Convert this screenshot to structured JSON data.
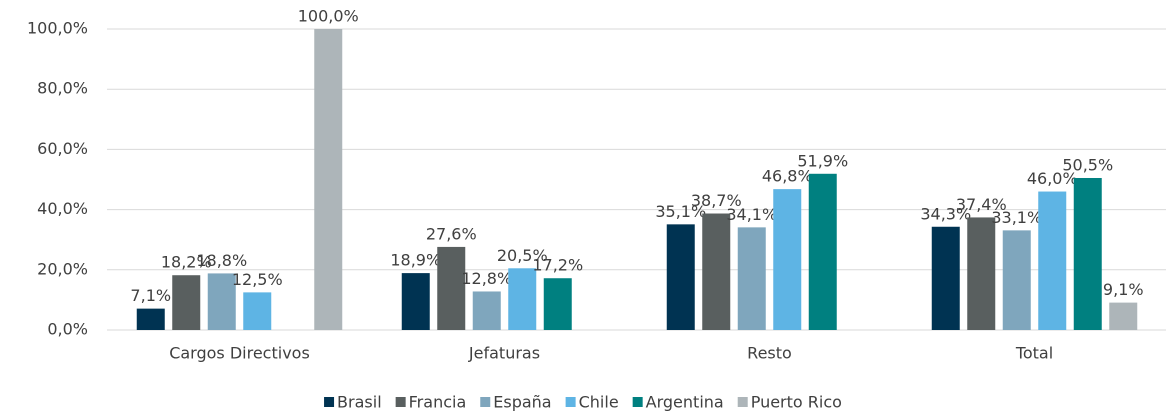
{
  "chart_data": {
    "type": "bar",
    "categories": [
      "Cargos Directivos",
      "Jefaturas",
      "Resto",
      "Total"
    ],
    "series": [
      {
        "name": "Brasil",
        "color": "#003352",
        "values": [
          7.1,
          18.9,
          35.1,
          34.3
        ],
        "value_labels": [
          "7,1%",
          "18,9%",
          "35,1%",
          "34,3%"
        ]
      },
      {
        "name": "Francia",
        "color": "#595f5f",
        "values": [
          18.2,
          27.6,
          38.7,
          37.4
        ],
        "value_labels": [
          "18,2%",
          "27,6%",
          "38,7%",
          "37,4%"
        ]
      },
      {
        "name": "España",
        "color": "#7fa6bd",
        "values": [
          18.8,
          12.8,
          34.1,
          33.1
        ],
        "value_labels": [
          "18,8%",
          "12,8%",
          "34,1%",
          "33,1%"
        ]
      },
      {
        "name": "Chile",
        "color": "#5eb4e4",
        "values": [
          12.5,
          20.5,
          46.8,
          46.0
        ],
        "value_labels": [
          "12,5%",
          "20,5%",
          "46,8%",
          "46,0%"
        ]
      },
      {
        "name": "Argentina",
        "color": "#008080",
        "values": [
          null,
          17.2,
          51.9,
          50.5
        ],
        "value_labels": [
          null,
          "17,2%",
          "51,9%",
          "50,5%"
        ]
      },
      {
        "name": "Puerto Rico",
        "color": "#adb5b9",
        "values": [
          100.0,
          null,
          null,
          9.1
        ],
        "value_labels": [
          "100,0%",
          null,
          null,
          "9,1%"
        ]
      }
    ],
    "ylim": [
      0,
      100
    ],
    "yticks": [
      {
        "value": 0,
        "label": "0,0%"
      },
      {
        "value": 20,
        "label": "20,0%"
      },
      {
        "value": 40,
        "label": "40,0%"
      },
      {
        "value": 60,
        "label": "60,0%"
      },
      {
        "value": 80,
        "label": "80,0%"
      },
      {
        "value": 100,
        "label": "100,0%"
      }
    ],
    "grid": true,
    "legend": "bottom"
  }
}
